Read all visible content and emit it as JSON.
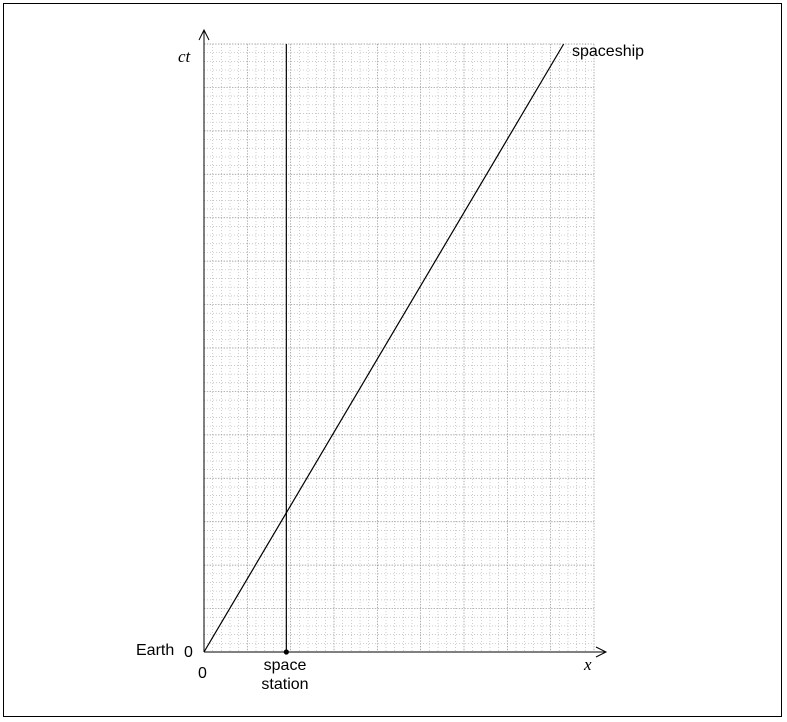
{
  "axes": {
    "y_label": "ct",
    "x_label": "x",
    "origin_x_tick": "0",
    "origin_y_tick": "0",
    "x_range": [
      0,
      9
    ],
    "y_range": [
      0,
      14
    ]
  },
  "labels": {
    "earth": "Earth",
    "station_line1": "space",
    "station_line2": "station",
    "spaceship": "spaceship"
  },
  "worldlines": {
    "space_station_x": 1.9,
    "spaceship": {
      "start": [
        0,
        0
      ],
      "end": [
        8.3,
        14
      ]
    }
  },
  "grid": {
    "major_step": 1,
    "minor_per_major": 5
  }
}
